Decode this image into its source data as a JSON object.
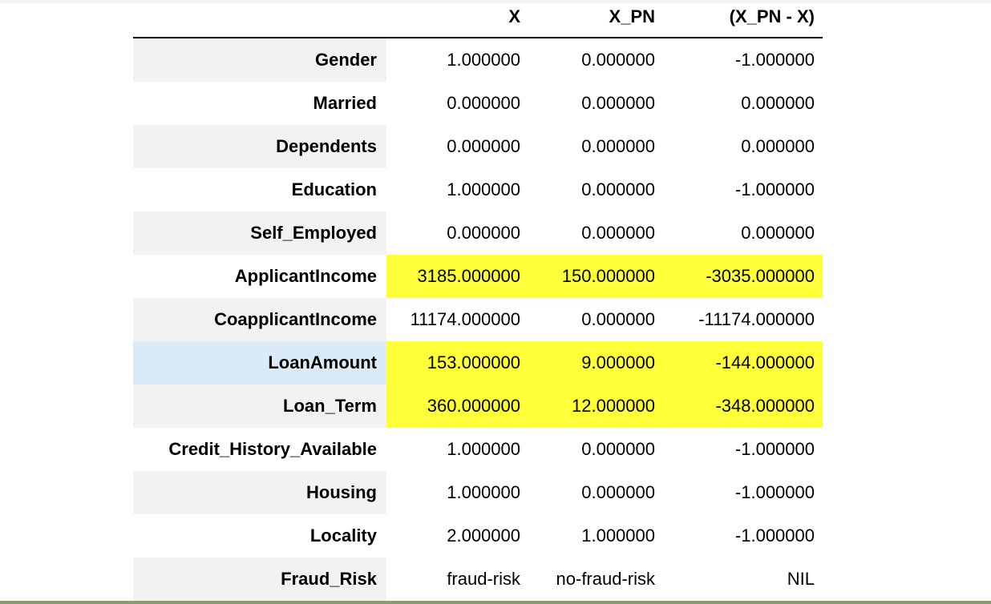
{
  "columns": [
    "X",
    "X_PN",
    "(X_PN - X)"
  ],
  "rows": [
    {
      "label": "Gender",
      "x": "1.000000",
      "x_pn": "0.000000",
      "diff": "-1.000000",
      "highlight": false
    },
    {
      "label": "Married",
      "x": "0.000000",
      "x_pn": "0.000000",
      "diff": "0.000000",
      "highlight": false
    },
    {
      "label": "Dependents",
      "x": "0.000000",
      "x_pn": "0.000000",
      "diff": "0.000000",
      "highlight": false
    },
    {
      "label": "Education",
      "x": "1.000000",
      "x_pn": "0.000000",
      "diff": "-1.000000",
      "highlight": false
    },
    {
      "label": "Self_Employed",
      "x": "0.000000",
      "x_pn": "0.000000",
      "diff": "0.000000",
      "highlight": false
    },
    {
      "label": "ApplicantIncome",
      "x": "3185.000000",
      "x_pn": "150.000000",
      "diff": "-3035.000000",
      "highlight": true
    },
    {
      "label": "CoapplicantIncome",
      "x": "11174.000000",
      "x_pn": "0.000000",
      "diff": "-11174.000000",
      "highlight": false
    },
    {
      "label": "LoanAmount",
      "x": "153.000000",
      "x_pn": "9.000000",
      "diff": "-144.000000",
      "highlight": true
    },
    {
      "label": "Loan_Term",
      "x": "360.000000",
      "x_pn": "12.000000",
      "diff": "-348.000000",
      "highlight": true
    },
    {
      "label": "Credit_History_Available",
      "x": "1.000000",
      "x_pn": "0.000000",
      "diff": "-1.000000",
      "highlight": false
    },
    {
      "label": "Housing",
      "x": "1.000000",
      "x_pn": "0.000000",
      "diff": "-1.000000",
      "highlight": false
    },
    {
      "label": "Locality",
      "x": "2.000000",
      "x_pn": "1.000000",
      "diff": "-1.000000",
      "highlight": false
    },
    {
      "label": "Fraud_Risk",
      "x": "fraud-risk",
      "x_pn": "no-fraud-risk",
      "diff": "NIL",
      "highlight": false
    }
  ],
  "colors": {
    "highlight": "#ffff3a",
    "row_alt": "#f2f2f2",
    "row_hover": "#dbeaf7"
  }
}
